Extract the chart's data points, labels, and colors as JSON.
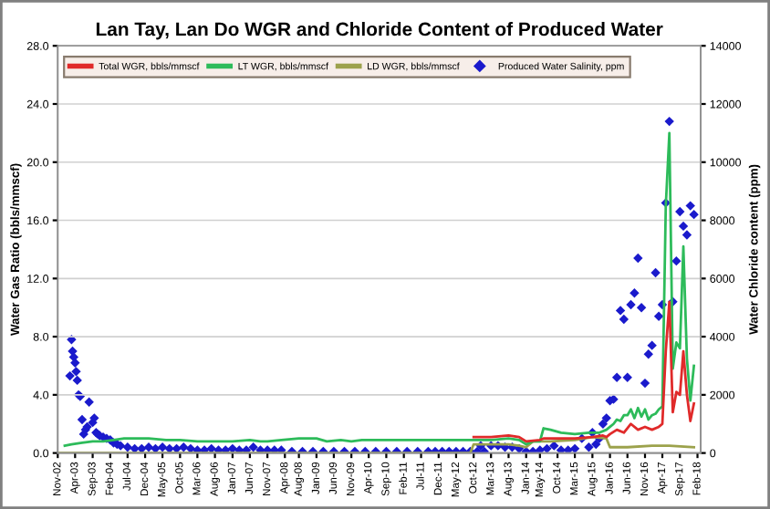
{
  "chart_data": {
    "type": "line",
    "title": "Lan Tay, Lan Do WGR and Chloride Content of Produced Water",
    "ylabel": "Water Gas Ratio (bbls/mmscf)",
    "y2label": "Water Chloride content (ppm)",
    "ylim": [
      0,
      28
    ],
    "yticks": [
      {
        "value": 0,
        "label": "0.0"
      },
      {
        "value": 4,
        "label": "4.0"
      },
      {
        "value": 8,
        "label": "8.0"
      },
      {
        "value": 12,
        "label": "12.0"
      },
      {
        "value": 16,
        "label": "16.0"
      },
      {
        "value": 20,
        "label": "20.0"
      },
      {
        "value": 24,
        "label": "24.0"
      },
      {
        "value": 28,
        "label": "28.0"
      }
    ],
    "y2lim": [
      0,
      14000
    ],
    "y2ticks": [
      0,
      2000,
      4000,
      6000,
      8000,
      10000,
      12000,
      14000
    ],
    "xlim": [
      "2002-11",
      "2018-03"
    ],
    "xticks": [
      {
        "value": "2002-11",
        "label": "Nov-02"
      },
      {
        "value": "2003-04",
        "label": "Apr-03"
      },
      {
        "value": "2003-09",
        "label": "Sep-03"
      },
      {
        "value": "2004-02",
        "label": "Feb-04"
      },
      {
        "value": "2004-07",
        "label": "Jul-04"
      },
      {
        "value": "2004-12",
        "label": "Dec-04"
      },
      {
        "value": "2005-05",
        "label": "May-05"
      },
      {
        "value": "2005-10",
        "label": "Oct-05"
      },
      {
        "value": "2006-03",
        "label": "Mar-06"
      },
      {
        "value": "2006-08",
        "label": "Aug-06"
      },
      {
        "value": "2007-01",
        "label": "Jan-07"
      },
      {
        "value": "2007-06",
        "label": "Jun-07"
      },
      {
        "value": "2007-11",
        "label": "Nov-07"
      },
      {
        "value": "2008-04",
        "label": "Apr-08"
      },
      {
        "value": "2008-08",
        "label": "Aug-08"
      },
      {
        "value": "2009-01",
        "label": "Jan-09"
      },
      {
        "value": "2009-06",
        "label": "Jun-09"
      },
      {
        "value": "2009-11",
        "label": "Nov-09"
      },
      {
        "value": "2010-04",
        "label": "Apr-10"
      },
      {
        "value": "2010-09",
        "label": "Sep-10"
      },
      {
        "value": "2011-02",
        "label": "Feb-11"
      },
      {
        "value": "2011-07",
        "label": "Jul-11"
      },
      {
        "value": "2011-12",
        "label": "Dec-11"
      },
      {
        "value": "2012-05",
        "label": "May-12"
      },
      {
        "value": "2012-10",
        "label": "Oct-12"
      },
      {
        "value": "2013-03",
        "label": "Mar-13"
      },
      {
        "value": "2013-08",
        "label": "Aug-13"
      },
      {
        "value": "2014-01",
        "label": "Jan-14"
      },
      {
        "value": "2014-05",
        "label": "May-14"
      },
      {
        "value": "2014-10",
        "label": "Oct-14"
      },
      {
        "value": "2015-03",
        "label": "Mar-15"
      },
      {
        "value": "2015-08",
        "label": "Aug-15"
      },
      {
        "value": "2016-01",
        "label": "Jan-16"
      },
      {
        "value": "2016-06",
        "label": "Jun-16"
      },
      {
        "value": "2016-11",
        "label": "Nov-16"
      },
      {
        "value": "2017-04",
        "label": "Apr-17"
      },
      {
        "value": "2017-09",
        "label": "Sep-17"
      },
      {
        "value": "2018-02",
        "label": "Feb-18"
      }
    ],
    "grid": "y",
    "legend": "top",
    "series": [
      {
        "name": "Total WGR, bbls/mmscf",
        "color": "#e02a2a",
        "x": [
          "2012-10",
          "2013-03",
          "2013-08",
          "2013-11",
          "2014-01",
          "2014-05",
          "2014-06",
          "2014-10",
          "2015-03",
          "2015-08",
          "2015-11",
          "2015-12",
          "2016-01",
          "2016-03",
          "2016-05",
          "2016-07",
          "2016-09",
          "2016-11",
          "2017-01",
          "2017-03",
          "2017-04",
          "2017-05",
          "2017-06",
          "2017-07",
          "2017-08",
          "2017-09",
          "2017-10",
          "2017-11",
          "2017-12",
          "2018-01"
        ],
        "values": [
          1.1,
          1.1,
          1.2,
          1.1,
          0.8,
          0.9,
          1.0,
          1.0,
          1.0,
          1.1,
          1.2,
          1.1,
          1.3,
          1.6,
          1.4,
          2.0,
          1.6,
          1.8,
          1.6,
          1.8,
          2.0,
          7.0,
          10.4,
          2.8,
          4.2,
          4.0,
          7.0,
          4.0,
          2.2,
          3.4
        ]
      },
      {
        "name": "LT WGR, bbls/mmscf",
        "color": "#2dbb5a",
        "x": [
          "2003-01",
          "2003-03",
          "2003-06",
          "2003-09",
          "2003-12",
          "2004-03",
          "2004-06",
          "2004-09",
          "2005-01",
          "2005-06",
          "2005-10",
          "2006-03",
          "2006-08",
          "2007-01",
          "2007-06",
          "2007-09",
          "2007-11",
          "2008-03",
          "2008-08",
          "2009-01",
          "2009-04",
          "2009-08",
          "2009-11",
          "2010-02",
          "2010-08",
          "2011-06",
          "2012-06",
          "2012-10",
          "2013-03",
          "2013-08",
          "2013-11",
          "2014-01",
          "2014-03",
          "2014-05",
          "2014-06",
          "2014-08",
          "2014-11",
          "2015-03",
          "2015-07",
          "2015-10",
          "2015-12",
          "2016-01",
          "2016-02",
          "2016-03",
          "2016-04",
          "2016-05",
          "2016-06",
          "2016-07",
          "2016-08",
          "2016-09",
          "2016-10",
          "2016-11",
          "2016-12",
          "2017-01",
          "2017-02",
          "2017-03",
          "2017-04",
          "2017-05",
          "2017-06",
          "2017-07",
          "2017-08",
          "2017-09",
          "2017-10",
          "2017-11",
          "2017-12",
          "2018-01"
        ],
        "values": [
          0.5,
          0.6,
          0.7,
          0.8,
          0.8,
          0.9,
          1.0,
          1.0,
          1.0,
          0.9,
          0.9,
          0.8,
          0.8,
          0.8,
          0.9,
          0.8,
          0.8,
          0.9,
          1.0,
          1.0,
          0.8,
          0.9,
          0.8,
          0.9,
          0.9,
          0.9,
          0.9,
          0.9,
          0.9,
          1.0,
          0.9,
          0.6,
          0.8,
          0.8,
          1.7,
          1.6,
          1.4,
          1.3,
          1.4,
          1.4,
          1.6,
          1.8,
          2.0,
          2.3,
          2.2,
          2.6,
          2.6,
          3.0,
          2.4,
          3.1,
          2.5,
          3.0,
          2.3,
          2.6,
          2.7,
          3.0,
          3.2,
          17.0,
          22.0,
          5.8,
          7.6,
          7.2,
          14.2,
          6.5,
          3.6,
          6.0
        ]
      },
      {
        "name": "LD WGR, bbls/mmscf",
        "color": "#9ca24c",
        "x": [
          "2002-11",
          "2012-09",
          "2012-10",
          "2013-08",
          "2013-11",
          "2014-01",
          "2014-03",
          "2014-08",
          "2015-03",
          "2015-08",
          "2015-12",
          "2016-01",
          "2016-06",
          "2017-01",
          "2017-06",
          "2018-01"
        ],
        "values": [
          0,
          0,
          0.6,
          0.6,
          0.5,
          0.4,
          0.8,
          0.8,
          0.9,
          1.1,
          1.0,
          0.4,
          0.4,
          0.5,
          0.5,
          0.4
        ]
      },
      {
        "name": "Produced Water Salinity, ppm",
        "color": "#1a1acc",
        "type": "scatter",
        "axis": "y2",
        "marker": "diamond",
        "x": [
          "2003-02-15",
          "2003-03-01",
          "2003-03-10",
          "2003-03-20",
          "2003-04-01",
          "2003-04-10",
          "2003-04-20",
          "2003-05-01",
          "2003-05-15",
          "2003-06-01",
          "2003-06-15",
          "2003-07-01",
          "2003-07-15",
          "2003-08-01",
          "2003-09-01",
          "2003-09-15",
          "2003-10-01",
          "2003-10-15",
          "2003-11-01",
          "2003-12-01",
          "2004-01-01",
          "2004-02-01",
          "2004-03-01",
          "2004-04-01",
          "2004-05-01",
          "2004-07-01",
          "2004-09-01",
          "2004-11-01",
          "2005-01-01",
          "2005-03-01",
          "2005-05-01",
          "2005-07-01",
          "2005-09-01",
          "2005-11-01",
          "2006-01-01",
          "2006-03-01",
          "2006-05-01",
          "2006-07-01",
          "2006-09-01",
          "2006-11-01",
          "2007-01-01",
          "2007-03-01",
          "2007-05-01",
          "2007-07-01",
          "2007-09-01",
          "2007-11-01",
          "2008-01-01",
          "2008-03-01",
          "2008-06-01",
          "2008-09-01",
          "2008-12-01",
          "2009-03-01",
          "2009-06-01",
          "2009-09-01",
          "2009-12-01",
          "2010-03-01",
          "2010-06-01",
          "2010-09-01",
          "2010-12-01",
          "2011-03-01",
          "2011-06-01",
          "2011-09-01",
          "2011-11-01",
          "2012-01-01",
          "2012-03-01",
          "2012-05-01",
          "2012-07-01",
          "2012-09-01",
          "2012-11-01",
          "2012-12-01",
          "2013-01-01",
          "2013-03-01",
          "2013-05-01",
          "2013-07-01",
          "2013-09-01",
          "2013-11-01",
          "2014-01-01",
          "2014-03-01",
          "2014-05-01",
          "2014-07-01",
          "2014-09-01",
          "2014-11-01",
          "2015-01-01",
          "2015-03-01",
          "2015-05-01",
          "2015-07-01",
          "2015-08-01",
          "2015-09-01",
          "2015-10-01",
          "2015-11-01",
          "2015-12-01",
          "2016-01-01",
          "2016-02-01",
          "2016-03-01",
          "2016-04-01",
          "2016-05-01",
          "2016-06-01",
          "2016-07-01",
          "2016-08-01",
          "2016-09-01",
          "2016-10-01",
          "2016-11-01",
          "2016-12-01",
          "2017-01-01",
          "2017-02-01",
          "2017-03-01",
          "2017-04-01",
          "2017-05-01",
          "2017-06-01",
          "2017-07-01",
          "2017-08-01",
          "2017-09-01",
          "2017-10-01",
          "2017-11-01",
          "2017-12-01",
          "2018-01-01"
        ],
        "values": [
          2650,
          3900,
          3500,
          3300,
          3100,
          2800,
          2500,
          2000,
          1950,
          1150,
          650,
          800,
          900,
          1750,
          1050,
          1200,
          700,
          650,
          600,
          550,
          500,
          450,
          350,
          300,
          250,
          200,
          150,
          150,
          200,
          150,
          200,
          150,
          150,
          200,
          150,
          100,
          100,
          150,
          100,
          100,
          150,
          100,
          100,
          200,
          100,
          100,
          100,
          100,
          50,
          50,
          50,
          50,
          50,
          50,
          50,
          50,
          50,
          50,
          50,
          50,
          50,
          50,
          50,
          50,
          50,
          50,
          50,
          50,
          50,
          250,
          50,
          250,
          250,
          200,
          200,
          150,
          50,
          50,
          100,
          150,
          250,
          100,
          100,
          150,
          500,
          200,
          700,
          300,
          500,
          1000,
          1200,
          1800,
          1850,
          2600,
          4900,
          4600,
          2600,
          5100,
          5500,
          6700,
          5000,
          2400,
          3400,
          3700,
          6200,
          4700,
          5100,
          8600,
          11400,
          5200,
          6600,
          8300,
          7800,
          7500,
          8500,
          8200
        ]
      }
    ]
  }
}
